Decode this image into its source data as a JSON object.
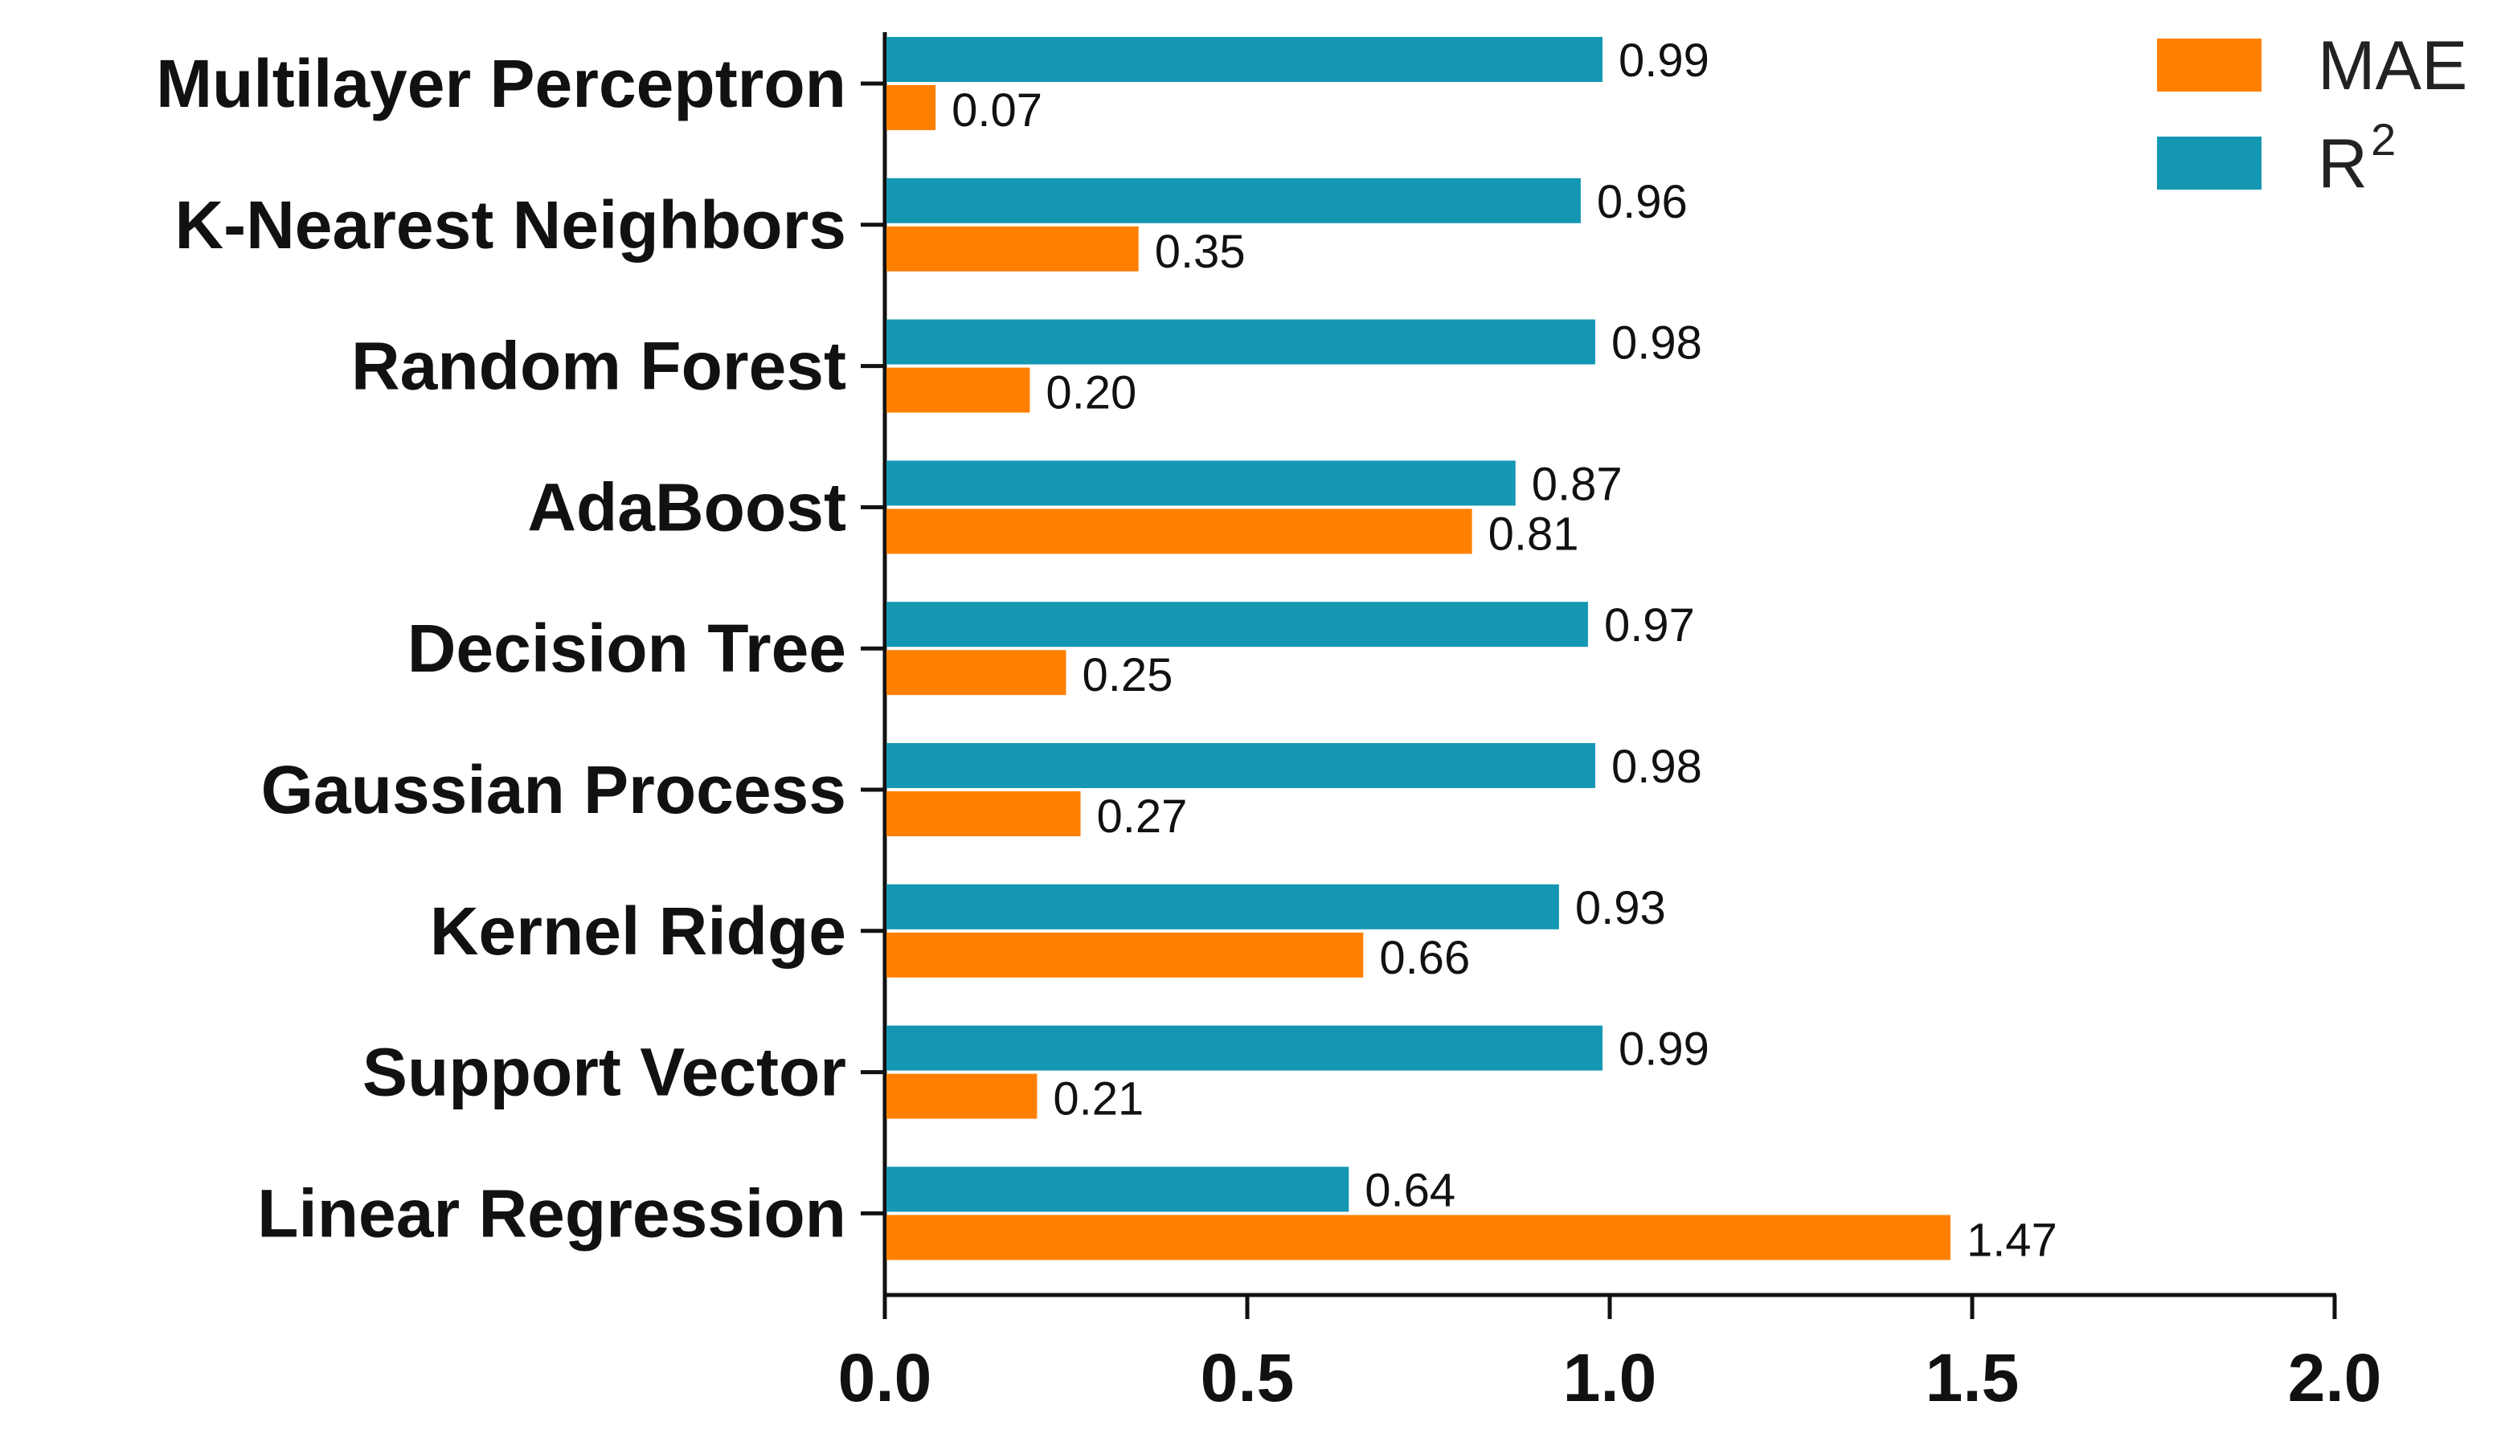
{
  "chart_data": {
    "type": "bar",
    "orientation": "horizontal",
    "categories": [
      "Multilayer Perceptron",
      "K-Nearest Neighbors",
      "Random Forest",
      "AdaBoost",
      "Decision Tree",
      "Gaussian Process",
      "Kernel Ridge",
      "Support Vector",
      "Linear Regression"
    ],
    "series": [
      {
        "name": "R2",
        "legend_base": "R",
        "legend_sup": "2",
        "color": "#1497b2",
        "values": [
          0.99,
          0.96,
          0.98,
          0.87,
          0.97,
          0.98,
          0.93,
          0.99,
          0.64
        ],
        "labels": [
          "0.99",
          "0.96",
          "0.98",
          "0.87",
          "0.97",
          "0.98",
          "0.93",
          "0.99",
          "0.64"
        ]
      },
      {
        "name": "MAE",
        "legend_base": "MAE",
        "legend_sup": "",
        "color": "#ff8000",
        "values": [
          0.07,
          0.35,
          0.2,
          0.81,
          0.25,
          0.27,
          0.66,
          0.21,
          1.47
        ],
        "labels": [
          "0.07",
          "0.35",
          "0.20",
          "0.81",
          "0.25",
          "0.27",
          "0.66",
          "0.21",
          "1.47"
        ]
      }
    ],
    "legend_order": [
      "MAE",
      "R2"
    ],
    "legend_position": "top-right",
    "xlim": [
      0,
      2.0
    ],
    "xticks": [
      0.0,
      0.5,
      1.0,
      1.5,
      2.0
    ],
    "xtick_labels": [
      "0.0",
      "0.5",
      "1.0",
      "1.5",
      "2.0"
    ],
    "title": "",
    "xlabel": "",
    "ylabel": "",
    "grid": false
  }
}
